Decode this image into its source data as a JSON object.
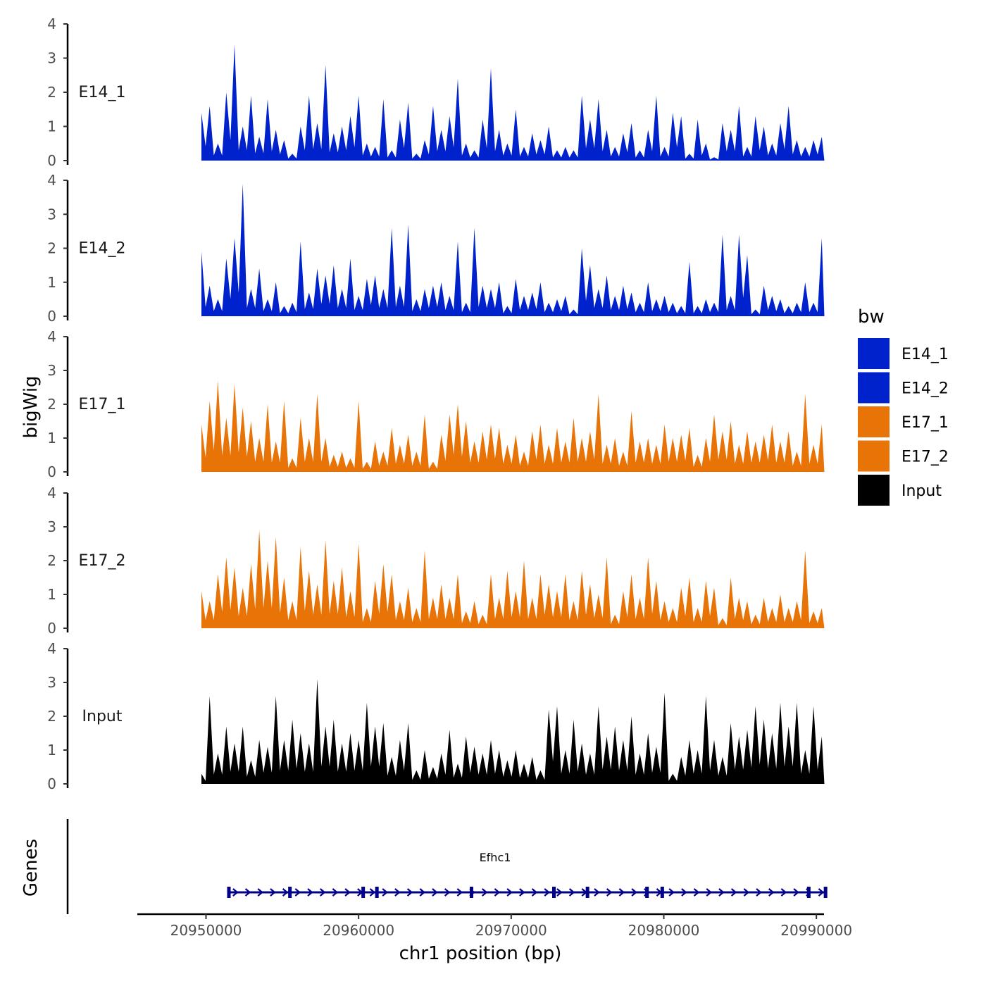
{
  "chart_data": {
    "type": "area",
    "ylabel": "bigWig",
    "xlabel": "chr1 position (bp)",
    "x_ticks": [
      20950000,
      20960000,
      20970000,
      20980000,
      20990000
    ],
    "x_tick_labels": [
      "20950000",
      "20960000",
      "20970000",
      "20980000",
      "20990000"
    ],
    "xlim": [
      20945500,
      20990500
    ],
    "ylim": [
      0,
      4
    ],
    "y_ticks": [
      0,
      1,
      2,
      3,
      4
    ],
    "y_tick_labels": [
      "0",
      "1",
      "2",
      "3",
      "4"
    ],
    "tracks": [
      {
        "name": "E14_1",
        "color": "#0022CC",
        "x": [
          20949700,
          20950240,
          20950780,
          20951330,
          20951870,
          20952410,
          20952950,
          20953490,
          20954040,
          20954580,
          20955120,
          20955660,
          20956200,
          20956750,
          20957290,
          20957830,
          20958370,
          20958910,
          20959460,
          20960000,
          20960540,
          20961080,
          20961620,
          20962170,
          20962710,
          20963250,
          20963790,
          20964330,
          20964880,
          20965420,
          20965960,
          20966500,
          20967040,
          20967590,
          20968130,
          20968670,
          20969210,
          20969750,
          20970300,
          20970840,
          20971380,
          20971920,
          20972460,
          20973010,
          20973550,
          20974090,
          20974630,
          20975170,
          20975720,
          20976260,
          20976800,
          20977340,
          20977880,
          20978430,
          20978970,
          20979510,
          20980050,
          20980590,
          20981140,
          20981680,
          20982220,
          20982760,
          20983300,
          20983850,
          20984390,
          20984930,
          20985470,
          20986010,
          20986560,
          20987100,
          20987640,
          20988180,
          20988720,
          20989270,
          20989810,
          20990350,
          20990700
        ],
        "values": [
          1.4,
          1.6,
          0.5,
          2.0,
          3.4,
          1.0,
          1.9,
          0.7,
          1.8,
          0.9,
          0.6,
          0.2,
          1.0,
          1.9,
          1.1,
          2.8,
          0.8,
          1.0,
          1.3,
          1.9,
          0.5,
          0.4,
          1.8,
          0.3,
          1.2,
          1.7,
          0.2,
          0.6,
          1.6,
          0.9,
          1.3,
          2.4,
          0.5,
          0.3,
          1.2,
          2.7,
          0.9,
          0.5,
          1.5,
          0.4,
          0.8,
          0.6,
          1.0,
          0.3,
          0.4,
          0.3,
          1.9,
          1.2,
          1.8,
          0.9,
          0.4,
          0.8,
          1.1,
          0.3,
          0.9,
          1.9,
          0.4,
          1.4,
          1.3,
          0.2,
          1.2,
          0.5,
          0.1,
          1.1,
          0.9,
          1.6,
          0.4,
          1.3,
          1.0,
          0.5,
          1.1,
          1.6,
          0.6,
          0.4,
          0.6,
          0.7,
          0.0
        ]
      },
      {
        "name": "E14_2",
        "color": "#0022CC",
        "x": [
          20949700,
          20950240,
          20950780,
          20951330,
          20951870,
          20952410,
          20952950,
          20953490,
          20954040,
          20954580,
          20955120,
          20955660,
          20956200,
          20956750,
          20957290,
          20957830,
          20958370,
          20958910,
          20959460,
          20960000,
          20960540,
          20961080,
          20961620,
          20962170,
          20962710,
          20963250,
          20963790,
          20964330,
          20964880,
          20965420,
          20965960,
          20966500,
          20967040,
          20967590,
          20968130,
          20968670,
          20969210,
          20969750,
          20970300,
          20970840,
          20971380,
          20971920,
          20972460,
          20973010,
          20973550,
          20974090,
          20974630,
          20975170,
          20975720,
          20976260,
          20976800,
          20977340,
          20977880,
          20978430,
          20978970,
          20979510,
          20980050,
          20980590,
          20981140,
          20981680,
          20982220,
          20982760,
          20983300,
          20983850,
          20984390,
          20984930,
          20985470,
          20986010,
          20986560,
          20987100,
          20987640,
          20988180,
          20988720,
          20989270,
          20989810,
          20990350,
          20990700
        ],
        "values": [
          1.9,
          0.9,
          0.5,
          1.7,
          2.3,
          3.9,
          0.8,
          1.4,
          0.5,
          1.0,
          0.3,
          0.4,
          2.2,
          0.7,
          1.4,
          1.2,
          1.5,
          0.8,
          1.7,
          0.6,
          1.1,
          1.2,
          0.8,
          2.6,
          0.9,
          2.7,
          0.5,
          0.8,
          0.9,
          1.0,
          0.6,
          2.2,
          0.4,
          2.6,
          0.9,
          0.8,
          1.0,
          0.3,
          1.1,
          0.6,
          0.7,
          1.0,
          0.4,
          0.5,
          0.6,
          0.2,
          2.0,
          1.5,
          0.8,
          1.2,
          0.6,
          0.9,
          0.7,
          0.4,
          1.0,
          0.5,
          0.6,
          0.4,
          0.3,
          1.6,
          0.3,
          0.5,
          0.4,
          2.4,
          0.6,
          2.4,
          1.8,
          0.2,
          0.9,
          0.6,
          0.5,
          0.3,
          0.4,
          1.0,
          0.4,
          2.3,
          0.0
        ]
      },
      {
        "name": "E17_1",
        "color": "#E87306",
        "x": [
          20949700,
          20950240,
          20950780,
          20951330,
          20951870,
          20952410,
          20952950,
          20953490,
          20954040,
          20954580,
          20955120,
          20955660,
          20956200,
          20956750,
          20957290,
          20957830,
          20958370,
          20958910,
          20959460,
          20960000,
          20960540,
          20961080,
          20961620,
          20962170,
          20962710,
          20963250,
          20963790,
          20964330,
          20964880,
          20965420,
          20965960,
          20966500,
          20967040,
          20967590,
          20968130,
          20968670,
          20969210,
          20969750,
          20970300,
          20970840,
          20971380,
          20971920,
          20972460,
          20973010,
          20973550,
          20974090,
          20974630,
          20975170,
          20975720,
          20976260,
          20976800,
          20977340,
          20977880,
          20978430,
          20978970,
          20979510,
          20980050,
          20980590,
          20981140,
          20981680,
          20982220,
          20982760,
          20983300,
          20983850,
          20984390,
          20984930,
          20985470,
          20986010,
          20986560,
          20987100,
          20987640,
          20988180,
          20988720,
          20989270,
          20989810,
          20990350,
          20990700
        ],
        "values": [
          1.4,
          2.1,
          2.7,
          1.6,
          2.6,
          1.9,
          1.5,
          1.0,
          2.0,
          0.9,
          2.1,
          0.4,
          1.6,
          1.0,
          2.3,
          1.0,
          0.5,
          0.6,
          0.4,
          2.1,
          0.3,
          0.9,
          0.6,
          1.3,
          0.8,
          1.1,
          0.6,
          1.7,
          0.3,
          1.1,
          1.7,
          2.0,
          1.5,
          0.9,
          1.2,
          1.4,
          1.3,
          0.8,
          1.1,
          0.6,
          1.2,
          1.4,
          0.8,
          1.3,
          0.9,
          1.6,
          1.0,
          1.2,
          2.3,
          0.8,
          1.0,
          0.6,
          1.8,
          0.9,
          1.0,
          0.8,
          1.4,
          1.0,
          1.1,
          1.3,
          0.5,
          1.0,
          1.7,
          1.2,
          1.5,
          0.8,
          1.2,
          0.9,
          1.1,
          1.4,
          0.9,
          1.2,
          0.6,
          2.3,
          0.8,
          1.4,
          0.0
        ]
      },
      {
        "name": "E17_2",
        "color": "#E87306",
        "x": [
          20949700,
          20950240,
          20950780,
          20951330,
          20951870,
          20952410,
          20952950,
          20953490,
          20954040,
          20954580,
          20955120,
          20955660,
          20956200,
          20956750,
          20957290,
          20957830,
          20958370,
          20958910,
          20959460,
          20960000,
          20960540,
          20961080,
          20961620,
          20962170,
          20962710,
          20963250,
          20963790,
          20964330,
          20964880,
          20965420,
          20965960,
          20966500,
          20967040,
          20967590,
          20968130,
          20968670,
          20969210,
          20969750,
          20970300,
          20970840,
          20971380,
          20971920,
          20972460,
          20973010,
          20973550,
          20974090,
          20974630,
          20975170,
          20975720,
          20976260,
          20976800,
          20977340,
          20977880,
          20978430,
          20978970,
          20979510,
          20980050,
          20980590,
          20981140,
          20981680,
          20982220,
          20982760,
          20983300,
          20983850,
          20984390,
          20984930,
          20985470,
          20986010,
          20986560,
          20987100,
          20987640,
          20988180,
          20988720,
          20989270,
          20989810,
          20990350,
          20990700
        ],
        "values": [
          1.1,
          0.8,
          1.6,
          2.1,
          1.8,
          1.2,
          1.9,
          2.9,
          2.0,
          2.7,
          1.5,
          0.8,
          2.4,
          1.7,
          1.3,
          2.6,
          1.4,
          1.8,
          1.1,
          2.5,
          0.6,
          1.4,
          1.9,
          1.6,
          0.8,
          1.2,
          0.6,
          2.3,
          0.9,
          1.3,
          0.9,
          1.6,
          0.5,
          0.8,
          0.4,
          1.6,
          0.9,
          1.7,
          1.1,
          2.0,
          0.9,
          1.6,
          1.3,
          1.1,
          1.6,
          0.8,
          1.7,
          1.3,
          1.0,
          2.1,
          0.4,
          1.1,
          1.6,
          0.9,
          2.1,
          1.4,
          0.8,
          0.6,
          1.2,
          1.5,
          0.6,
          1.4,
          1.2,
          0.3,
          1.5,
          0.9,
          0.8,
          0.4,
          0.9,
          0.6,
          1.0,
          0.6,
          0.8,
          2.3,
          0.5,
          0.6,
          0.0
        ]
      },
      {
        "name": "Input",
        "color": "#000000",
        "x": [
          20949700,
          20950240,
          20950780,
          20951330,
          20951870,
          20952410,
          20952950,
          20953490,
          20954040,
          20954580,
          20955120,
          20955660,
          20956200,
          20956750,
          20957290,
          20957830,
          20958370,
          20958910,
          20959460,
          20960000,
          20960540,
          20961080,
          20961620,
          20962170,
          20962710,
          20963250,
          20963790,
          20964330,
          20964880,
          20965420,
          20965960,
          20966500,
          20967040,
          20967590,
          20968130,
          20968670,
          20969210,
          20969750,
          20970300,
          20970840,
          20971380,
          20971920,
          20972460,
          20973010,
          20973550,
          20974090,
          20974630,
          20975170,
          20975720,
          20976260,
          20976800,
          20977340,
          20977880,
          20978430,
          20978970,
          20979510,
          20980050,
          20980590,
          20981140,
          20981680,
          20982220,
          20982760,
          20983300,
          20983850,
          20984390,
          20984930,
          20985470,
          20986010,
          20986560,
          20987100,
          20987640,
          20988180,
          20988720,
          20989270,
          20989810,
          20990350,
          20990700
        ],
        "values": [
          0.3,
          2.6,
          0.9,
          1.7,
          1.2,
          1.7,
          0.7,
          1.3,
          1.1,
          2.6,
          1.3,
          1.9,
          1.5,
          1.2,
          3.1,
          1.7,
          1.9,
          1.2,
          1.5,
          1.3,
          2.4,
          1.7,
          1.8,
          0.8,
          1.3,
          1.8,
          0.4,
          1.0,
          0.5,
          0.9,
          1.6,
          0.6,
          1.4,
          1.1,
          0.9,
          1.3,
          1.0,
          0.7,
          1.0,
          0.6,
          0.8,
          0.4,
          2.2,
          2.3,
          1.0,
          1.9,
          1.2,
          0.9,
          2.3,
          1.4,
          1.7,
          1.3,
          2.0,
          0.9,
          1.5,
          1.1,
          2.7,
          0.3,
          0.8,
          1.3,
          1.0,
          2.6,
          1.3,
          0.8,
          1.8,
          1.4,
          1.6,
          2.3,
          1.9,
          1.5,
          2.4,
          1.7,
          2.4,
          1.0,
          2.3,
          1.4,
          0.0
        ]
      }
    ],
    "legend": {
      "title": "bw",
      "position": "right",
      "entries": [
        {
          "label": "E14_1",
          "color": "#0022CC"
        },
        {
          "label": "E14_2",
          "color": "#0022CC"
        },
        {
          "label": "E17_1",
          "color": "#E87306"
        },
        {
          "label": "E17_2",
          "color": "#E87306"
        },
        {
          "label": "Input",
          "color": "#000000"
        }
      ]
    },
    "gene_track": {
      "label": "Genes",
      "gene_name": "Efhc1",
      "color": "#00008B",
      "start": 20951500,
      "end": 20990700,
      "strand": "+",
      "exons": [
        20951500,
        20955500,
        20960300,
        20961200,
        20967400,
        20972800,
        20975000,
        20978900,
        20979900,
        20989500,
        20990600
      ]
    }
  }
}
